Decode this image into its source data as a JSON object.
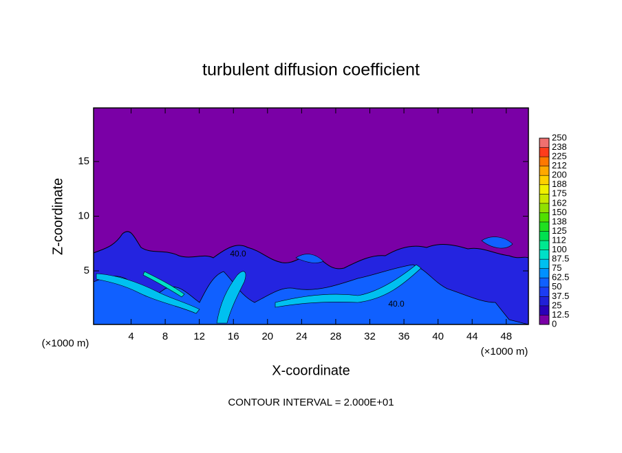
{
  "chart_data": {
    "type": "contour",
    "title": "turbulent diffusion coefficient",
    "x_label": "X-coordinate",
    "y_label": "Z-coordinate",
    "x_unit": "(×1000 m)",
    "footer": "CONTOUR INTERVAL = 2.000E+01",
    "xlim": [
      -0.4,
      50.6
    ],
    "xticks": [
      4,
      8,
      12,
      16,
      20,
      24,
      28,
      32,
      36,
      40,
      44,
      48
    ],
    "ylim": [
      0.1,
      19.9
    ],
    "yticks": [
      5,
      10,
      15
    ],
    "contour_labels": [
      "40.0",
      "40.0"
    ],
    "colorbar": {
      "levels": [
        0,
        12.5,
        25,
        37.5,
        50,
        62.5,
        75,
        87.5,
        100,
        {
          "value": 112.5,
          "label": "112"
        },
        125,
        {
          "value": 137.5,
          "label": "138"
        },
        150,
        {
          "value": 162.5,
          "label": "162"
        },
        175,
        {
          "value": 187.5,
          "label": "188"
        },
        200,
        {
          "value": 212.5,
          "label": "212"
        },
        225,
        {
          "value": 237.5,
          "label": "238"
        },
        250
      ],
      "colors": [
        "#7a00a6",
        "#2a00b8",
        "#2020d8",
        "#1c3cf4",
        "#1060ff",
        "#0090ff",
        "#00c0f0",
        "#00e0c8",
        "#00e890",
        "#00e050",
        "#20e020",
        "#50e000",
        "#90e000",
        "#c8e800",
        "#f0f000",
        "#ffd000",
        "#ffa800",
        "#ff7800",
        "#ff3c1c",
        "#f07070"
      ]
    }
  }
}
